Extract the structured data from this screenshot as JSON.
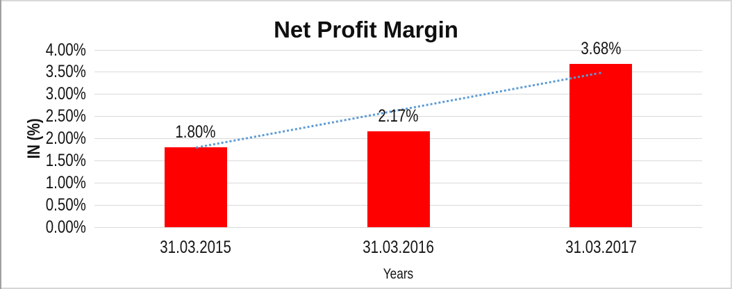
{
  "chart_data": {
    "type": "bar",
    "title": "Net Profit Margin",
    "xlabel": "Years",
    "ylabel": "IN (%)",
    "categories": [
      "31.03.2015",
      "31.03.2016",
      "31.03.2017"
    ],
    "series": [
      {
        "name": "Net Profit Margin",
        "values": [
          1.8,
          2.17,
          3.68
        ]
      }
    ],
    "data_labels": [
      "1.80%",
      "2.17%",
      "3.68%"
    ],
    "ylim": [
      0,
      4
    ],
    "ytick_step": 0.5,
    "ytick_labels": [
      "0.00%",
      "0.50%",
      "1.00%",
      "1.50%",
      "2.00%",
      "2.50%",
      "3.00%",
      "3.50%",
      "4.00%"
    ],
    "grid": true,
    "legend": "none",
    "trendline": {
      "type": "linear",
      "style": "dotted",
      "start_value": 1.79,
      "end_value": 3.48
    },
    "colors": {
      "bar": "#ff0000",
      "trendline": "#5b9bd5",
      "gridline": "#d9d9d9",
      "text": "#131313"
    }
  }
}
